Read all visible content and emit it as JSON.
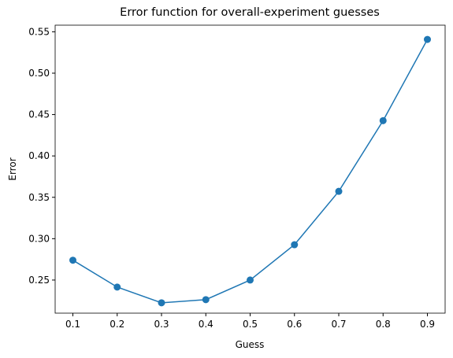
{
  "chart_data": {
    "type": "line",
    "title": "Error function for overall-experiment guesses",
    "x_label": "Guess",
    "y_label": "Error",
    "x": [
      0.1,
      0.2,
      0.3,
      0.4,
      0.5,
      0.6,
      0.7,
      0.8,
      0.9
    ],
    "series": [
      {
        "name": "Error",
        "color": "#1f77b4",
        "values": [
          0.274,
          0.2415,
          0.2225,
          0.2263,
          0.25,
          0.2927,
          0.3572,
          0.4426,
          0.5408
        ]
      }
    ],
    "xlim": [
      0.06,
      0.94
    ],
    "ylim": [
      0.21,
      0.558
    ],
    "xticks": [
      0.1,
      0.2,
      0.3,
      0.4,
      0.5,
      0.6,
      0.7,
      0.8,
      0.9
    ],
    "yticks": [
      0.25,
      {
        "value": 0.3,
        "label": "0.30"
      },
      0.35,
      {
        "value": 0.4,
        "label": "0.40"
      },
      0.45,
      {
        "value": 0.5,
        "label": "0.50"
      },
      0.55
    ],
    "grid": false
  }
}
